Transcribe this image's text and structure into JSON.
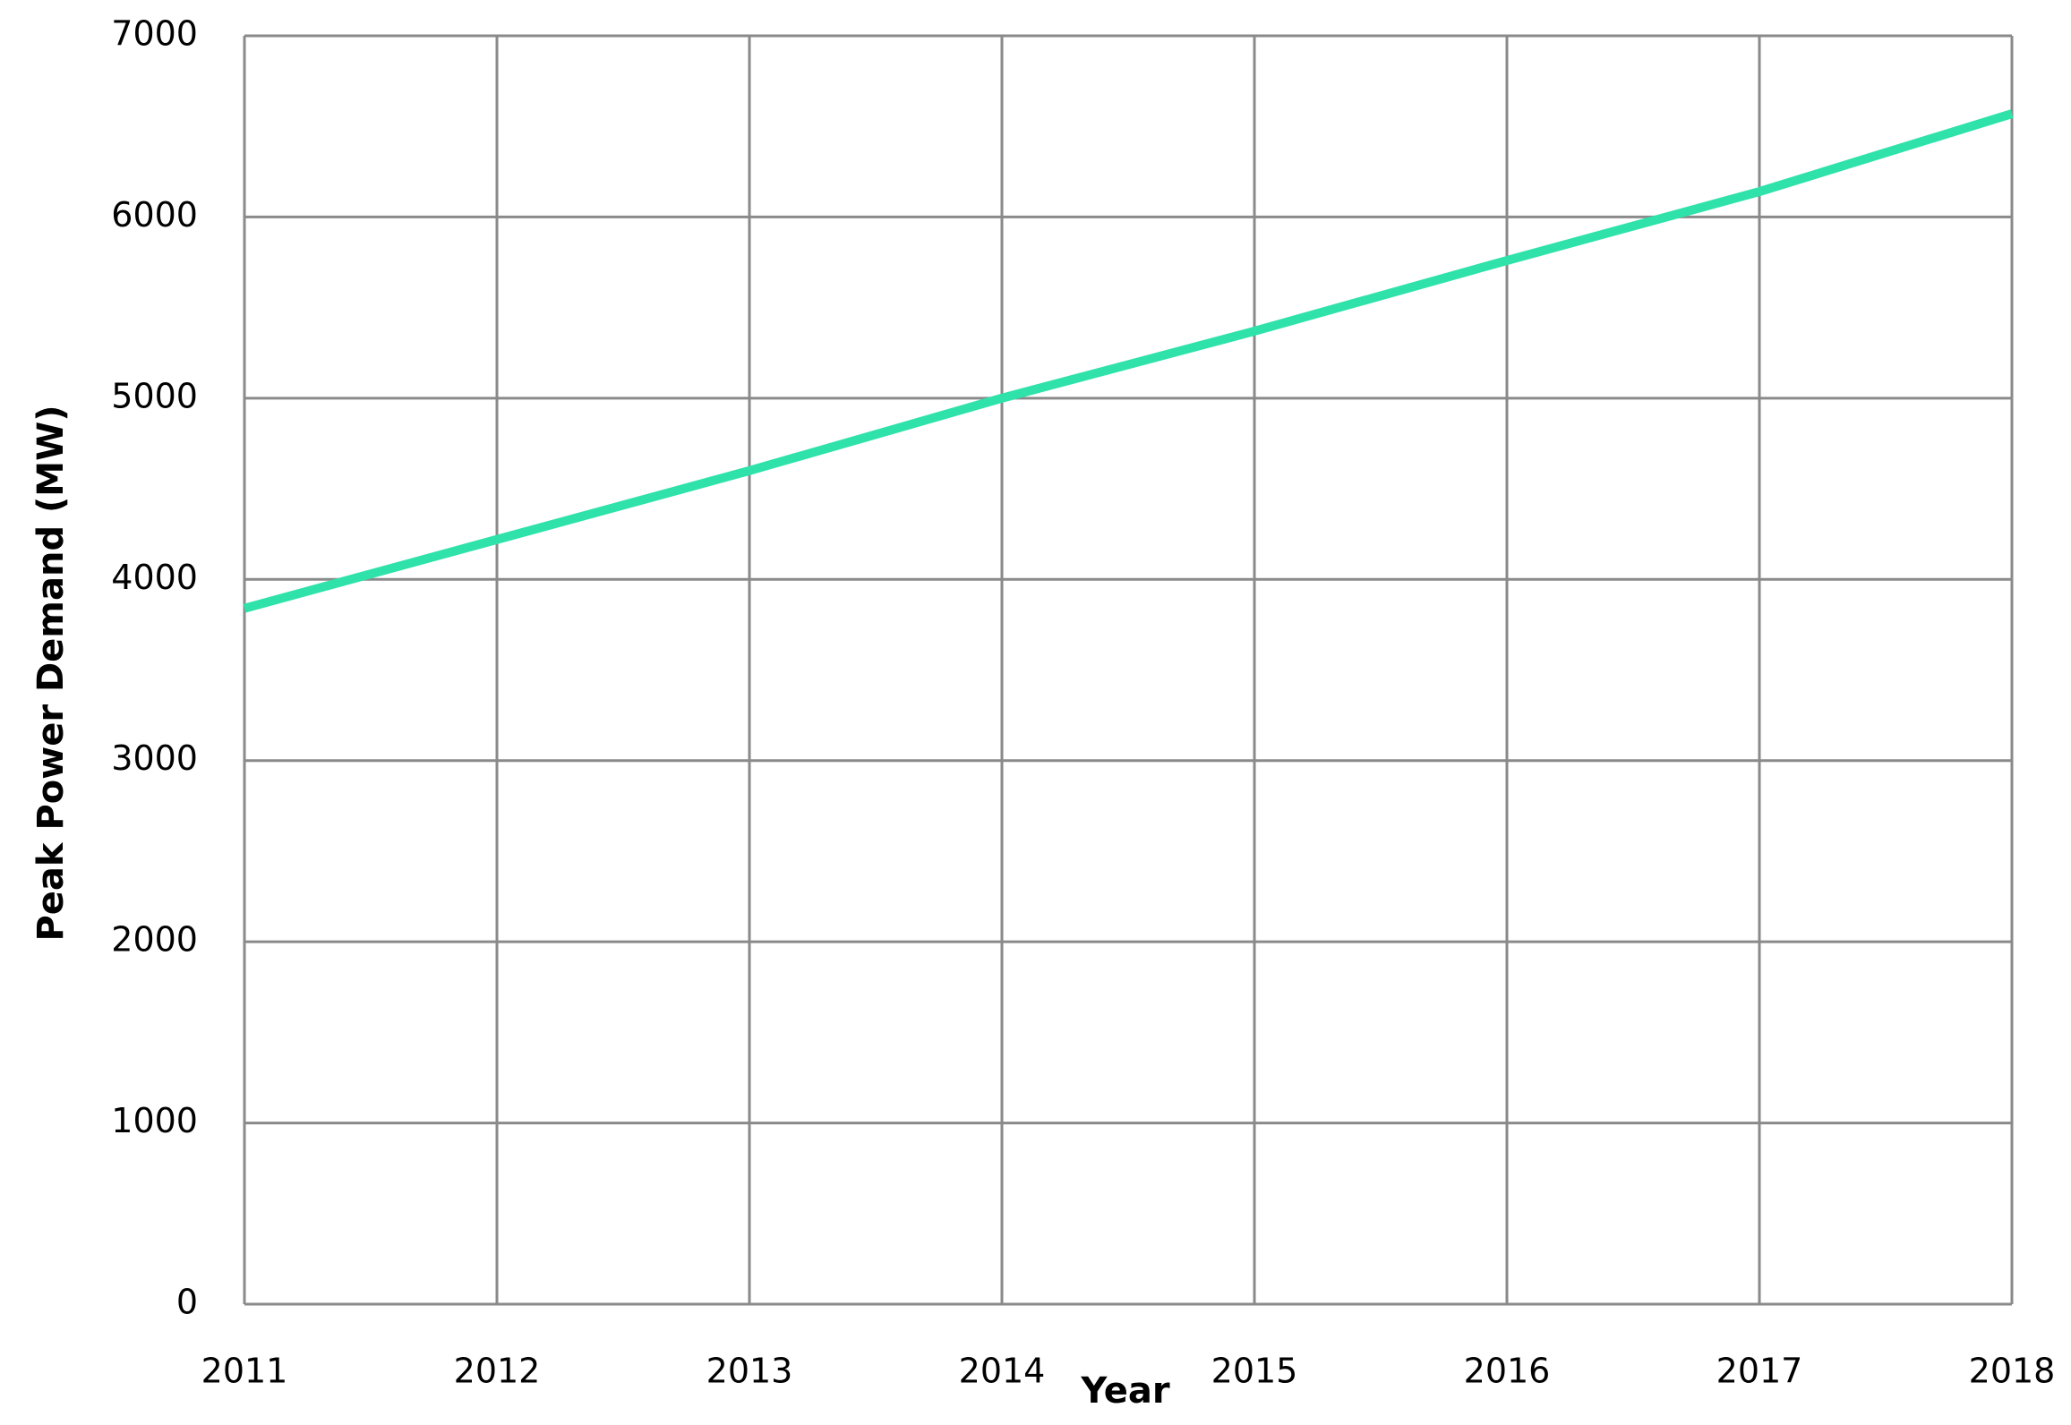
{
  "chart_data": {
    "type": "line",
    "x_label": "Year",
    "y_label": "Peak Power Demand  (MW)",
    "x": [
      2011,
      2012,
      2013,
      2014,
      2015,
      2016,
      2017,
      2018
    ],
    "series": [
      {
        "name": "Peak Power Demand",
        "color": "#2ee2aa",
        "values": [
          3840,
          4220,
          4600,
          5000,
          5370,
          5760,
          6140,
          6570
        ]
      }
    ],
    "xlim": [
      2011,
      2018
    ],
    "xticks": [
      2011,
      2012,
      2013,
      2014,
      2015,
      2016,
      2017,
      2018
    ],
    "ylim": [
      0,
      7000
    ],
    "yticks": [
      0,
      1000,
      2000,
      3000,
      4000,
      5000,
      6000,
      7000
    ],
    "grid": true
  }
}
